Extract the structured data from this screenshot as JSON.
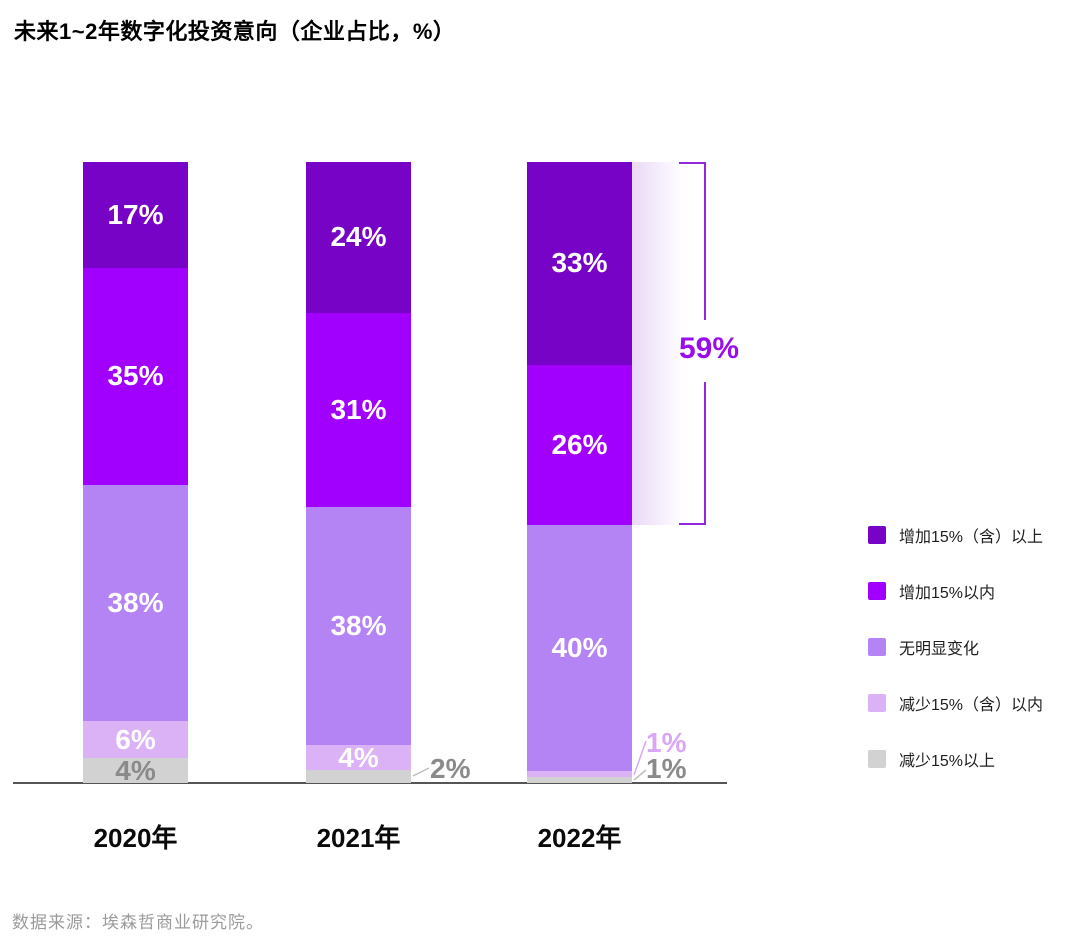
{
  "page": {
    "title": "未来1~2年数字化投资意向（企业占比，%）",
    "source": "数据来源：埃森哲商业研究院。"
  },
  "chart_data": {
    "type": "stacked-bar",
    "title": "未来1~2年数字化投资意向（企业占比，%）",
    "unit": "企业占比 %",
    "categories": [
      "2020年",
      "2021年",
      "2022年"
    ],
    "series": [
      {
        "key": "increase-15-plus",
        "name": "增加15%（含）以上",
        "color": "#7603c6",
        "values": [
          17,
          24,
          33
        ]
      },
      {
        "key": "increase-under-15",
        "name": "增加15%以内",
        "color": "#a100ff",
        "values": [
          35,
          31,
          26
        ]
      },
      {
        "key": "no-obvious-change",
        "name": "无明显变化",
        "color": "#b584f4",
        "values": [
          38,
          38,
          40
        ]
      },
      {
        "key": "decrease-under-15",
        "name": "减少15%（含）以内",
        "color": "#dcb2f6",
        "values": [
          6,
          4,
          1
        ]
      },
      {
        "key": "decrease-15-plus",
        "name": "减少15%以上",
        "color": "#d2d2d2",
        "values": [
          4,
          2,
          1
        ]
      }
    ],
    "value_label_suffix": "%",
    "inside_label_color_default": "#ffffff",
    "inside_label_overrides": [
      {
        "category_index": 0,
        "series_index": 4,
        "color": "#8a8a8a"
      }
    ],
    "outside_labels": [
      {
        "category_index": 1,
        "series_index": 4,
        "text": "2%",
        "color": "#8a8a8a"
      },
      {
        "category_index": 2,
        "series_index": 3,
        "text": "1%",
        "color": "#d9a7f6"
      },
      {
        "category_index": 2,
        "series_index": 4,
        "text": "1%",
        "color": "#8a8a8a"
      }
    ],
    "annotation": {
      "text": "59%",
      "category": "2022年",
      "series_span": [
        "增加15%（含）以上",
        "增加15%以内"
      ],
      "color": "#9a0eeb"
    },
    "legend_position": "right",
    "grid": false,
    "ylim": [
      0,
      100
    ]
  }
}
